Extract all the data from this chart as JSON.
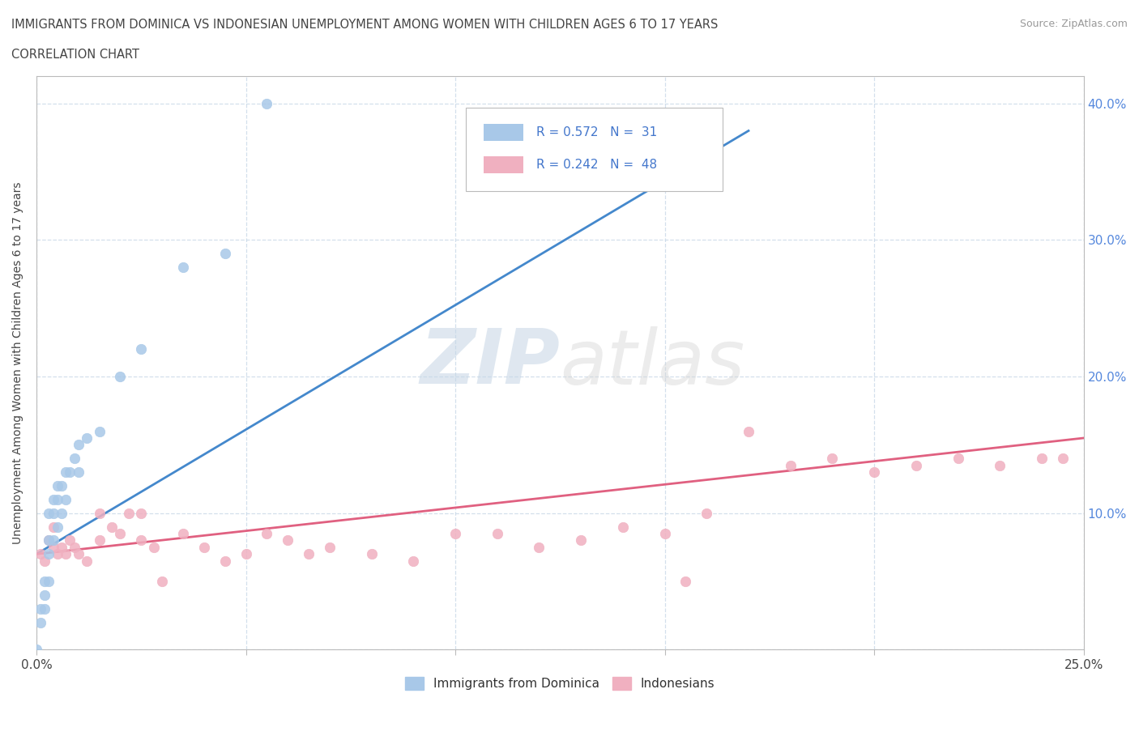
{
  "title_line1": "IMMIGRANTS FROM DOMINICA VS INDONESIAN UNEMPLOYMENT AMONG WOMEN WITH CHILDREN AGES 6 TO 17 YEARS",
  "title_line2": "CORRELATION CHART",
  "source_text": "Source: ZipAtlas.com",
  "ylabel": "Unemployment Among Women with Children Ages 6 to 17 years",
  "xlim": [
    0.0,
    0.25
  ],
  "ylim": [
    0.0,
    0.42
  ],
  "x_ticks": [
    0.0,
    0.05,
    0.1,
    0.15,
    0.2,
    0.25
  ],
  "y_ticks": [
    0.0,
    0.1,
    0.2,
    0.3,
    0.4
  ],
  "dominica_color": "#a8c8e8",
  "indonesian_color": "#f0b0c0",
  "dominica_line_color": "#4488cc",
  "indonesian_line_color": "#e06080",
  "legend_text_color": "#4477cc",
  "watermark": "ZIPatlas",
  "dominica_R": "0.572",
  "dominica_N": "31",
  "indonesian_R": "0.242",
  "indonesian_N": "48",
  "dom_x": [
    0.0,
    0.001,
    0.001,
    0.002,
    0.002,
    0.002,
    0.003,
    0.003,
    0.003,
    0.003,
    0.004,
    0.004,
    0.004,
    0.005,
    0.005,
    0.005,
    0.006,
    0.006,
    0.007,
    0.007,
    0.008,
    0.009,
    0.01,
    0.01,
    0.012,
    0.015,
    0.02,
    0.025,
    0.035,
    0.045,
    0.055
  ],
  "dom_y": [
    0.0,
    0.02,
    0.03,
    0.03,
    0.04,
    0.05,
    0.05,
    0.07,
    0.08,
    0.1,
    0.08,
    0.1,
    0.11,
    0.09,
    0.11,
    0.12,
    0.1,
    0.12,
    0.11,
    0.13,
    0.13,
    0.14,
    0.13,
    0.15,
    0.155,
    0.16,
    0.2,
    0.22,
    0.28,
    0.29,
    0.4
  ],
  "ind_x": [
    0.001,
    0.002,
    0.003,
    0.004,
    0.004,
    0.005,
    0.006,
    0.007,
    0.008,
    0.009,
    0.01,
    0.012,
    0.015,
    0.015,
    0.018,
    0.02,
    0.022,
    0.025,
    0.025,
    0.028,
    0.03,
    0.035,
    0.04,
    0.045,
    0.05,
    0.055,
    0.06,
    0.065,
    0.07,
    0.08,
    0.09,
    0.1,
    0.11,
    0.12,
    0.13,
    0.14,
    0.15,
    0.155,
    0.16,
    0.17,
    0.18,
    0.19,
    0.2,
    0.21,
    0.22,
    0.23,
    0.24,
    0.245
  ],
  "ind_y": [
    0.07,
    0.065,
    0.08,
    0.075,
    0.09,
    0.07,
    0.075,
    0.07,
    0.08,
    0.075,
    0.07,
    0.065,
    0.08,
    0.1,
    0.09,
    0.085,
    0.1,
    0.08,
    0.1,
    0.075,
    0.05,
    0.085,
    0.075,
    0.065,
    0.07,
    0.085,
    0.08,
    0.07,
    0.075,
    0.07,
    0.065,
    0.085,
    0.085,
    0.075,
    0.08,
    0.09,
    0.085,
    0.05,
    0.1,
    0.16,
    0.135,
    0.14,
    0.13,
    0.135,
    0.14,
    0.135,
    0.14,
    0.14
  ]
}
